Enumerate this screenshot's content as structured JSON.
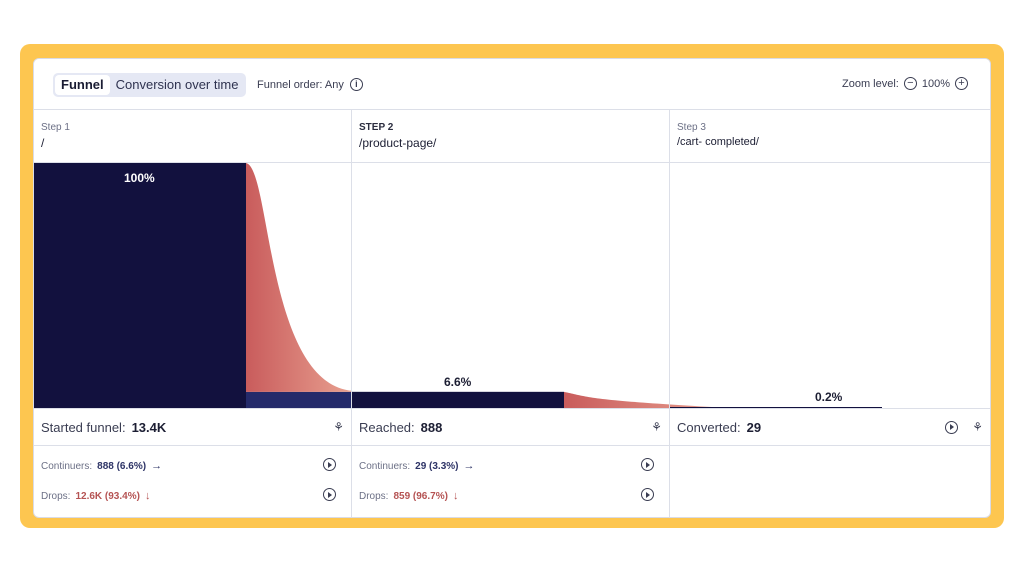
{
  "toolbar": {
    "tabs": [
      {
        "label": "Funnel",
        "active": true
      },
      {
        "label": "Conversion over time",
        "active": false
      }
    ],
    "funnel_order_label": "Funnel order: Any",
    "zoom_label": "Zoom level:",
    "zoom_value": "100%"
  },
  "steps": [
    {
      "step_label": "Step 1",
      "path": "/",
      "percent": "100%",
      "summary_label": "Started funnel:",
      "summary_value": "13.4K",
      "continuers_label": "Continuers:",
      "continuers_value": "888 (6.6%)",
      "drops_label": "Drops:",
      "drops_value": "12.6K (93.4%)"
    },
    {
      "step_label": "STEP 2",
      "path": "/product-page/",
      "percent": "6.6%",
      "summary_label": "Reached:",
      "summary_value": "888",
      "continuers_label": "Continuers:",
      "continuers_value": "29 (3.3%)",
      "drops_label": "Drops:",
      "drops_value": "859 (96.7%)"
    },
    {
      "step_label": "Step 3",
      "path": "/cart- completed/",
      "percent": "0.2%",
      "summary_label": "Converted:",
      "summary_value": "29"
    }
  ],
  "chart_data": {
    "type": "bar",
    "categories": [
      "/",
      "/product-page/",
      "/cart- completed/"
    ],
    "values": [
      100,
      6.6,
      0.2
    ],
    "series": [
      {
        "values": [
          100,
          6.6,
          0.2
        ]
      }
    ],
    "ylim": [
      0,
      100
    ]
  },
  "colors": {
    "bar": "#12113e",
    "drop": "#c95c5c",
    "drop_light": "#e8a090",
    "frame": "#fdc650"
  },
  "icons": {
    "info": "info-icon",
    "zoom_out": "minus-circle-icon",
    "zoom_in": "plus-circle-icon",
    "play": "play-circle-icon",
    "tree": "tree-icon",
    "continue_arrow": "arrow-right-icon",
    "drop_arrow": "arrow-down-icon"
  }
}
